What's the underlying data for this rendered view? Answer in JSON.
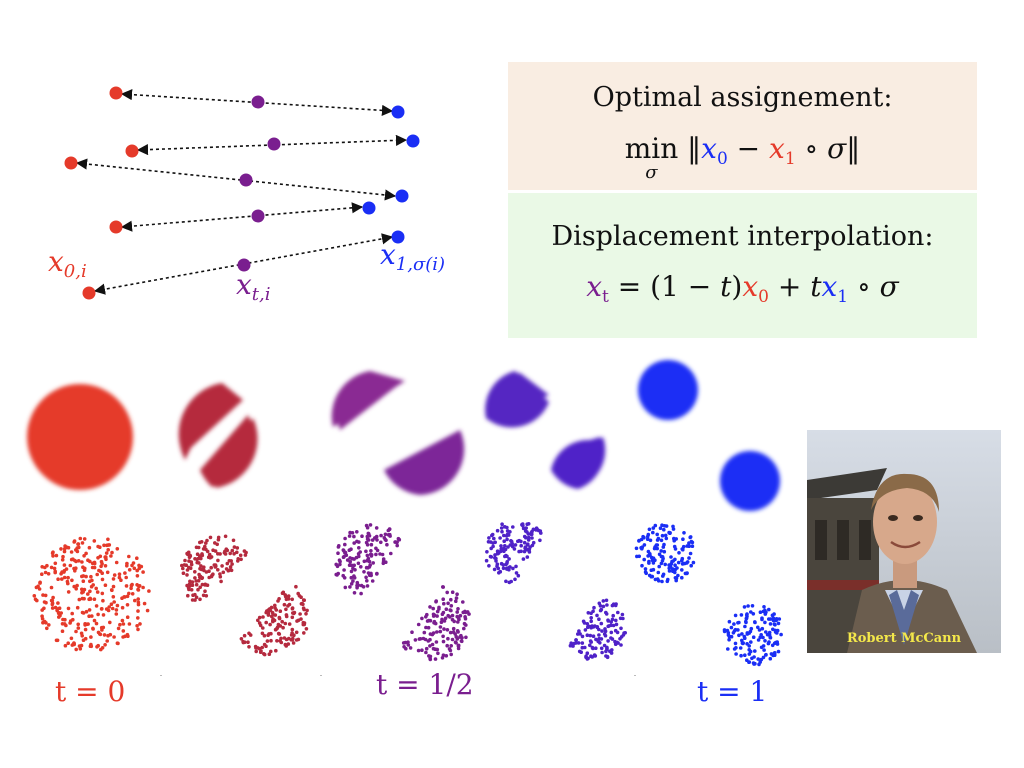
{
  "top_diagram": {
    "label_x0": "x",
    "label_x0_sub": "0,i",
    "label_xt": "x",
    "label_xt_sub": "t,i",
    "label_x1": "x",
    "label_x1_sub": "1,σ(i)"
  },
  "assignment_box": {
    "title": "Optimal assignement:",
    "op": "min",
    "op_sub": "σ",
    "norm_open": "‖",
    "x0": "x",
    "x0_sub": "0",
    "minus": " − ",
    "x1": "x",
    "x1_sub": "1",
    "compose": " ∘ σ",
    "norm_close": "‖"
  },
  "interp_box": {
    "title": "Displacement interpolation:",
    "xt": "x",
    "xt_sub": "t",
    "eq": " = (1 − ",
    "t1": "t",
    "close": ")",
    "x0": "x",
    "x0_sub": "0",
    "plus": " + ",
    "t2": "t",
    "x1": "x",
    "x1_sub": "1",
    "compose": " ∘ σ"
  },
  "time_labels": {
    "start": "t = 0",
    "middle": "t = 1/2",
    "end": "t = 1"
  },
  "photo": {
    "caption": "Robert McCann"
  },
  "colors": {
    "source": "#e53a2a",
    "middle": "#7a1e8f",
    "target": "#1a2ef5",
    "assign_bg": "#f9ede2",
    "interp_bg": "#eaf9e6",
    "caption": "#f4e84a"
  }
}
